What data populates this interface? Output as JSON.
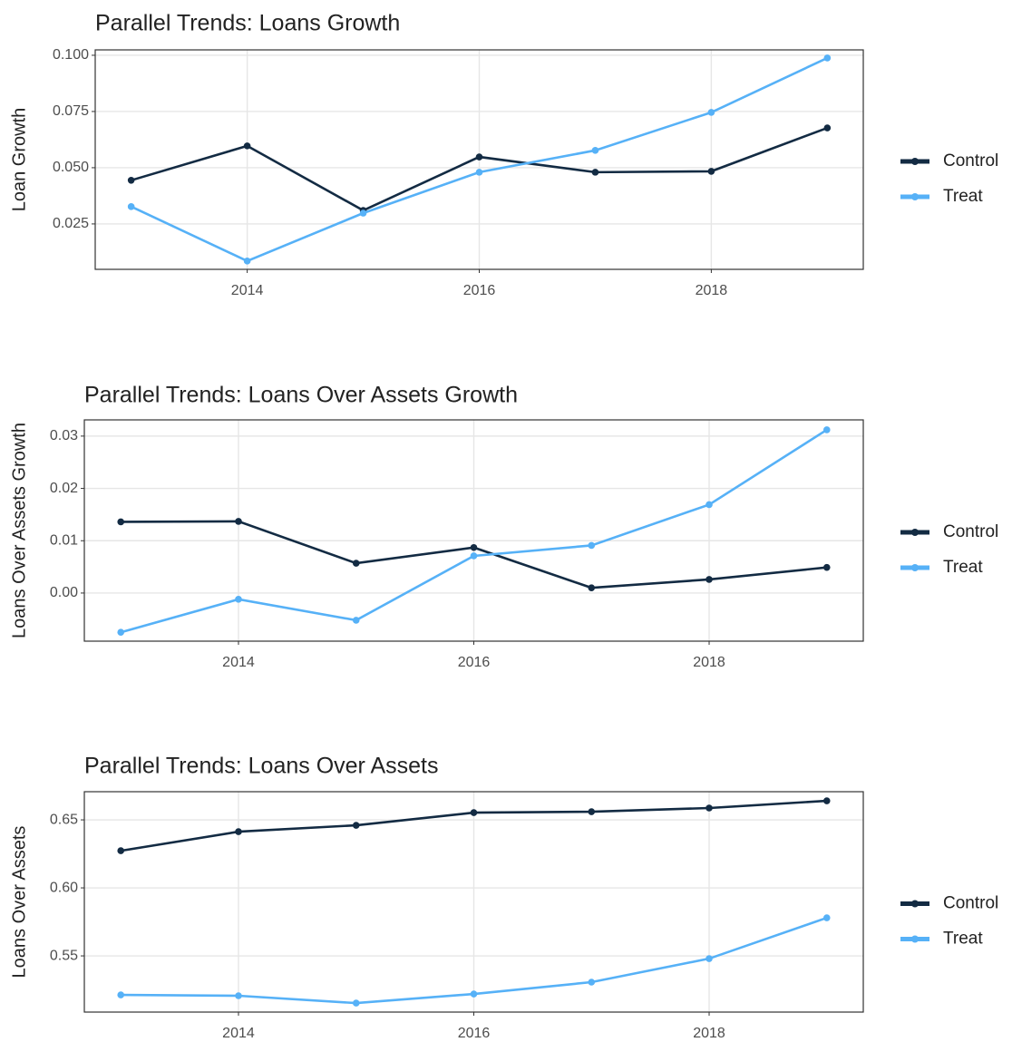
{
  "chart_data": [
    {
      "type": "line",
      "title": "Parallel Trends: Loans Growth",
      "y_label": "Loan Growth",
      "x": [
        2013,
        2014,
        2015,
        2016,
        2017,
        2018,
        2019
      ],
      "xlim": [
        2012.69,
        2019.31
      ],
      "xticks": [
        2014,
        2016,
        2018
      ],
      "ylim": [
        0.0048,
        0.1024
      ],
      "yticks": [
        0.025,
        {
          "value": 0.05,
          "label": "0.050"
        },
        0.075,
        {
          "value": 0.1,
          "label": "0.100"
        }
      ],
      "grid": true,
      "series": [
        {
          "name": "Control",
          "color": "#132b43",
          "values": [
            0.0444,
            0.0597,
            0.031,
            0.0548,
            0.048,
            0.0484,
            0.0677
          ]
        },
        {
          "name": "Treat",
          "color": "#56b1f7",
          "values": [
            0.0327,
            0.0085,
            0.0298,
            0.048,
            0.0577,
            0.0746,
            0.0988
          ]
        }
      ]
    },
    {
      "type": "line",
      "title": "Parallel Trends: Loans Over Assets Growth",
      "y_label": "Loans Over Assets Growth",
      "x": [
        2013,
        2014,
        2015,
        2016,
        2017,
        2018,
        2019
      ],
      "xlim": [
        2012.69,
        2019.31
      ],
      "xticks": [
        2014,
        2016,
        2018
      ],
      "ylim": [
        -0.0092,
        0.0331
      ],
      "yticks": [
        {
          "value": 0,
          "label": "0.00"
        },
        0.01,
        0.02,
        0.03
      ],
      "grid": true,
      "series": [
        {
          "name": "Control",
          "color": "#132b43",
          "values": [
            0.0136,
            0.0137,
            0.0057,
            0.0087,
            0.001,
            0.0026,
            0.0049
          ]
        },
        {
          "name": "Treat",
          "color": "#56b1f7",
          "values": [
            -0.0075,
            -0.0012,
            -0.0052,
            0.0071,
            0.0091,
            0.0169,
            0.0312
          ]
        }
      ]
    },
    {
      "type": "line",
      "title": "Parallel Trends: Loans Over Assets",
      "y_label": "Loans Over Assets",
      "x": [
        2013,
        2014,
        2015,
        2016,
        2017,
        2018,
        2019
      ],
      "xlim": [
        2012.69,
        2019.31
      ],
      "xticks": [
        2014,
        2016,
        2018
      ],
      "ylim": [
        0.5087,
        0.6707
      ],
      "yticks": [
        0.55,
        {
          "value": 0.6,
          "label": "0.60"
        },
        0.65
      ],
      "grid": true,
      "series": [
        {
          "name": "Control",
          "color": "#132b43",
          "values": [
            0.6273,
            0.6413,
            0.646,
            0.6553,
            0.656,
            0.6587,
            0.664
          ]
        },
        {
          "name": "Treat",
          "color": "#56b1f7",
          "values": [
            0.5213,
            0.5207,
            0.5153,
            0.522,
            0.5307,
            0.548,
            0.578
          ]
        }
      ]
    }
  ]
}
